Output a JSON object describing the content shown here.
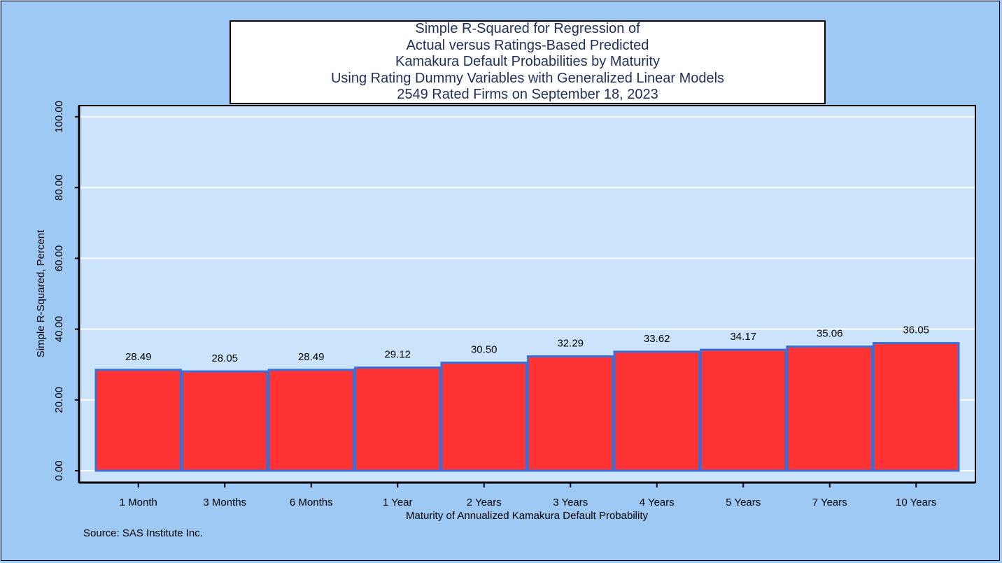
{
  "colors": {
    "background": "#9ec9f5",
    "plot_background": "#cce4fb",
    "bar_fill": "#ff3333",
    "bar_edge": "#3a6fd8",
    "gridline": "#ffffff",
    "title_text": "#1f2f5a"
  },
  "title_lines": [
    "Simple R-Squared for Regression of",
    "Actual versus Ratings-Based Predicted",
    "Kamakura Default Probabilities by Maturity",
    "Using Rating Dummy Variables with Generalized Linear Models",
    "2549 Rated Firms on September 18, 2023"
  ],
  "source": "Source: SAS Institute Inc.",
  "chart_data": {
    "type": "bar",
    "categories": [
      "1 Month",
      "3 Months",
      "6 Months",
      "1 Year",
      "2 Years",
      "3 Years",
      "4 Years",
      "5 Years",
      "7 Years",
      "10 Years"
    ],
    "values": [
      28.49,
      28.05,
      28.49,
      29.12,
      30.5,
      32.29,
      33.62,
      34.17,
      35.06,
      36.05
    ],
    "data_labels": [
      "28.49",
      "28.05",
      "28.49",
      "29.12",
      "30.50",
      "32.29",
      "33.62",
      "34.17",
      "35.06",
      "36.05"
    ],
    "xlabel": "Maturity of Annualized Kamakura Default Probability",
    "ylabel": "Simple R-Squared, Percent",
    "ylim": [
      0,
      100
    ],
    "yticks": [
      0,
      20,
      40,
      60,
      80,
      100
    ],
    "ytick_labels": [
      "0.00",
      "20.00",
      "40.00",
      "60.00",
      "80.00",
      "100.00"
    ],
    "grid": true,
    "legend": "none"
  }
}
